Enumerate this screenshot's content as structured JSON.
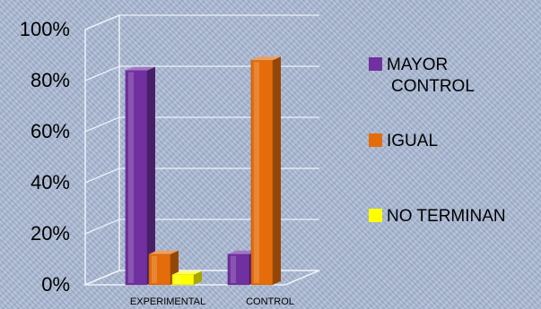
{
  "chart_data": {
    "type": "bar",
    "categories": [
      "EXPERIMENTAL",
      "CONTROL"
    ],
    "series": [
      {
        "name": "MAYOR CONTROL",
        "values": [
          84,
          12
        ],
        "color": "#7030a0"
      },
      {
        "name": "IGUAL",
        "values": [
          12,
          88
        ],
        "color": "#e46c0a"
      },
      {
        "name": "NO TERMINAN",
        "values": [
          4,
          0
        ],
        "color": "#ffff00"
      }
    ],
    "legend_lines": [
      [
        "MAYOR",
        "CONTROL"
      ],
      [
        "IGUAL"
      ],
      [
        "NO TERMINAN"
      ]
    ],
    "yticks": [
      "0%",
      "20%",
      "40%",
      "60%",
      "80%",
      "100%"
    ],
    "ylim": [
      0,
      100
    ],
    "grid": true,
    "legend_position": "right",
    "three_d": true
  }
}
